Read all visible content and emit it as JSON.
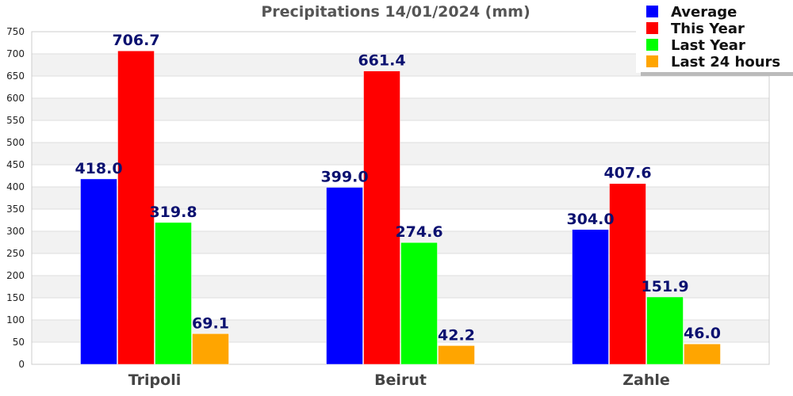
{
  "chart_data": {
    "type": "bar",
    "title": "Precipitations 14/01/2024 (mm)",
    "xlabel": "",
    "ylabel": "",
    "categories": [
      "Tripoli",
      "Beirut",
      "Zahle"
    ],
    "ylim": [
      0,
      750
    ],
    "yticks": [
      0,
      50,
      100,
      150,
      200,
      250,
      300,
      350,
      400,
      450,
      500,
      550,
      600,
      650,
      700,
      750
    ],
    "ytick_labels": [
      "0",
      "50",
      "100",
      "150",
      "200",
      "250",
      "300",
      "350",
      "400",
      "450",
      "500",
      "550",
      "600",
      "650",
      "700",
      "750"
    ],
    "series": [
      {
        "name": "Average",
        "color": "#0000ff",
        "values": [
          418.0,
          399.0,
          304.0
        ],
        "labels": [
          "418.0",
          "399.0",
          "304.0"
        ]
      },
      {
        "name": "This Year",
        "color": "#ff0000",
        "values": [
          706.7,
          661.4,
          407.6
        ],
        "labels": [
          "706.7",
          "661.4",
          "407.6"
        ]
      },
      {
        "name": "Last Year",
        "color": "#00ff00",
        "values": [
          319.8,
          274.6,
          151.9
        ],
        "labels": [
          "319.8",
          "274.6",
          "151.9"
        ]
      },
      {
        "name": "Last 24 hours",
        "color": "#ffa500",
        "values": [
          69.1,
          42.2,
          46.0
        ],
        "labels": [
          "69.1",
          "42.2",
          "46.0"
        ]
      }
    ],
    "grid": true,
    "grid_bands": [
      "#f2f2f2",
      "#ffffff"
    ],
    "legend_position": "top-right",
    "data_label_color": "#0b1170"
  }
}
